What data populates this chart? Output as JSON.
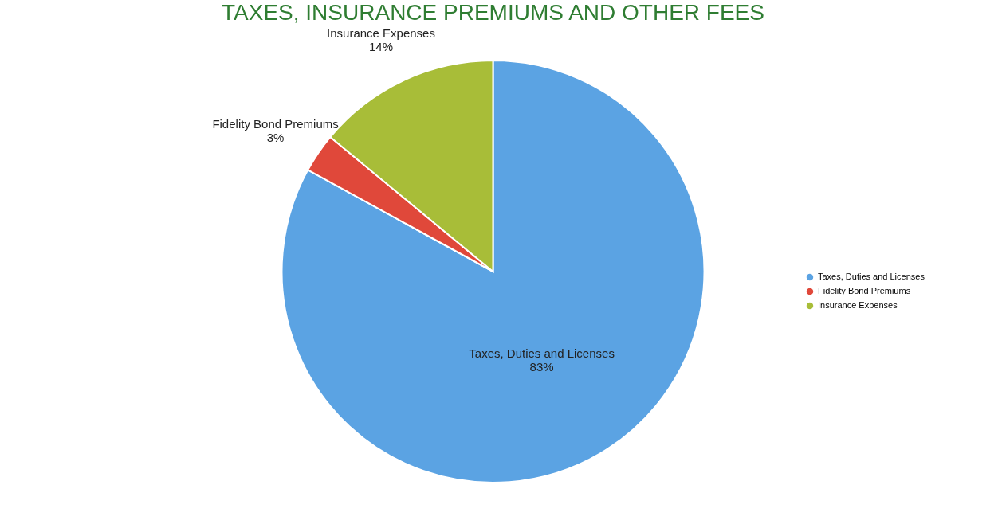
{
  "chart_data": {
    "type": "pie",
    "title": "TAXES, INSURANCE PREMIUMS AND OTHER FEES",
    "categories": [
      "Taxes, Duties and Licenses",
      "Fidelity Bond Premiums",
      "Insurance Expenses"
    ],
    "values": [
      83,
      3,
      14
    ],
    "value_labels": [
      "83%",
      "3%",
      "14%"
    ],
    "colors": [
      "#5ba3e3",
      "#e0483a",
      "#a8bd38"
    ],
    "legend": "right"
  }
}
